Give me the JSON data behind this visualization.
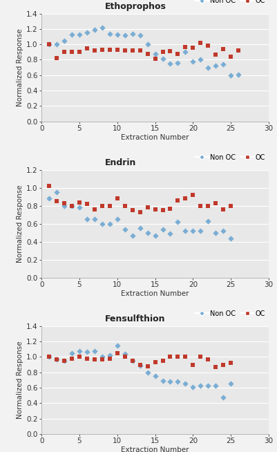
{
  "charts": [
    {
      "title": "Ethoprophos",
      "ylim": [
        0,
        1.4
      ],
      "yticks": [
        0,
        0.2,
        0.4,
        0.6,
        0.8,
        1.0,
        1.2,
        1.4
      ],
      "non_oc_x": [
        1,
        2,
        3,
        4,
        5,
        6,
        7,
        8,
        9,
        10,
        11,
        12,
        13,
        14,
        15,
        16,
        17,
        18,
        19,
        20,
        21,
        22,
        23,
        24,
        25,
        26
      ],
      "non_oc_y": [
        1.0,
        1.0,
        1.05,
        1.13,
        1.13,
        1.15,
        1.19,
        1.22,
        1.14,
        1.13,
        1.12,
        1.14,
        1.12,
        1.0,
        0.88,
        0.81,
        0.75,
        0.76,
        0.9,
        0.78,
        0.8,
        0.7,
        0.72,
        0.74,
        0.6,
        0.61
      ],
      "oc_x": [
        1,
        2,
        3,
        4,
        5,
        6,
        7,
        8,
        9,
        10,
        11,
        12,
        13,
        14,
        15,
        16,
        17,
        18,
        19,
        20,
        21,
        22,
        23,
        24,
        25,
        26
      ],
      "oc_y": [
        1.0,
        0.82,
        0.9,
        0.9,
        0.9,
        0.95,
        0.92,
        0.93,
        0.93,
        0.93,
        0.92,
        0.92,
        0.92,
        0.88,
        0.81,
        0.9,
        0.91,
        0.88,
        0.97,
        0.96,
        1.02,
        0.98,
        0.87,
        0.94,
        0.84,
        0.92
      ]
    },
    {
      "title": "Endrin",
      "ylim": [
        0,
        1.2
      ],
      "yticks": [
        0,
        0.2,
        0.4,
        0.6,
        0.8,
        1.0,
        1.2
      ],
      "non_oc_x": [
        1,
        2,
        3,
        4,
        5,
        6,
        7,
        8,
        9,
        10,
        11,
        12,
        13,
        14,
        15,
        16,
        17,
        18,
        19,
        20,
        21,
        22,
        23,
        24,
        25
      ],
      "non_oc_y": [
        0.88,
        0.95,
        0.8,
        0.8,
        0.78,
        0.65,
        0.65,
        0.6,
        0.6,
        0.65,
        0.54,
        0.47,
        0.55,
        0.5,
        0.47,
        0.54,
        0.49,
        0.62,
        0.52,
        0.52,
        0.52,
        0.63,
        0.5,
        0.52,
        0.44
      ],
      "oc_x": [
        1,
        2,
        3,
        4,
        5,
        6,
        7,
        8,
        9,
        10,
        11,
        12,
        13,
        14,
        15,
        16,
        17,
        18,
        19,
        20,
        21,
        22,
        23,
        24,
        25
      ],
      "oc_y": [
        1.02,
        0.85,
        0.83,
        0.8,
        0.84,
        0.82,
        0.76,
        0.8,
        0.8,
        0.88,
        0.8,
        0.75,
        0.73,
        0.78,
        0.76,
        0.75,
        0.77,
        0.86,
        0.88,
        0.92,
        0.8,
        0.8,
        0.83,
        0.76,
        0.8
      ]
    },
    {
      "title": "Fensulfthion",
      "ylim": [
        0,
        1.4
      ],
      "yticks": [
        0,
        0.2,
        0.4,
        0.6,
        0.8,
        1.0,
        1.2,
        1.4
      ],
      "non_oc_x": [
        1,
        2,
        3,
        4,
        5,
        6,
        7,
        8,
        9,
        10,
        11,
        12,
        13,
        14,
        15,
        16,
        17,
        18,
        19,
        20,
        21,
        22,
        23,
        24,
        25
      ],
      "non_oc_y": [
        1.0,
        0.97,
        0.95,
        1.05,
        1.08,
        1.07,
        1.08,
        1.0,
        1.02,
        1.15,
        1.04,
        0.95,
        0.89,
        0.8,
        0.75,
        0.69,
        0.68,
        0.68,
        0.65,
        0.61,
        0.63,
        0.63,
        0.63,
        0.47,
        0.65
      ],
      "oc_x": [
        1,
        2,
        3,
        4,
        5,
        6,
        7,
        8,
        9,
        10,
        11,
        12,
        13,
        14,
        15,
        16,
        17,
        18,
        19,
        20,
        21,
        22,
        23,
        24,
        25
      ],
      "oc_y": [
        1.0,
        0.97,
        0.95,
        0.98,
        1.0,
        0.98,
        0.97,
        0.97,
        0.98,
        1.05,
        1.0,
        0.95,
        0.9,
        0.88,
        0.93,
        0.95,
        1.0,
        1.0,
        1.0,
        0.9,
        1.0,
        0.97,
        0.87,
        0.9,
        0.92
      ]
    }
  ],
  "non_oc_color": "#7aadd4",
  "oc_color": "#c0392b",
  "xlabel": "Extraction Number",
  "ylabel": "Normalized Response",
  "plot_bg_color": "#e8e8e8",
  "fig_bg_color": "#f2f2f2",
  "grid_color": "#ffffff",
  "marker_non_oc": "D",
  "marker_oc": "s",
  "marker_size": 18,
  "xlim": [
    0,
    30
  ],
  "xticks": [
    0,
    5,
    10,
    15,
    20,
    25,
    30
  ]
}
